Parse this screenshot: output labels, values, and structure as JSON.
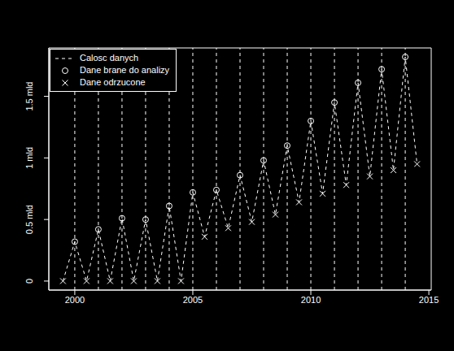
{
  "chart_data": {
    "type": "line",
    "legend": "upper left",
    "xlim": [
      1998.9,
      2015.1
    ],
    "xticks": [
      2000,
      2005,
      2010,
      2015
    ],
    "ylim": [
      -0.073,
      1.893
    ],
    "yticks": [
      0,
      {
        "value": 0.5,
        "label": "0.5 mld"
      },
      {
        "value": 1,
        "label": "1 mld"
      },
      {
        "value": 1.5,
        "label": "1.5 mld"
      }
    ],
    "vlines": [
      2000,
      2001,
      2002,
      2003,
      2004,
      2005,
      2006,
      2007,
      2008,
      2009,
      2010,
      2011,
      2012,
      2013,
      2014
    ],
    "series": [
      {
        "name": "Calosc danych",
        "type": "line",
        "line_style": "dashed",
        "color": "#ffffff",
        "x": [
          1999.5,
          2000,
          2000.5,
          2001,
          2001.5,
          2002,
          2002.5,
          2003,
          2003.5,
          2004,
          2004.5,
          2005,
          2005.5,
          2006,
          2006.5,
          2007,
          2007.5,
          2008,
          2008.5,
          2009,
          2009.5,
          2010,
          2010.5,
          2011,
          2011.5,
          2012,
          2012.5,
          2013,
          2013.5,
          2014,
          2014.5
        ],
        "values": [
          0,
          0.32,
          0,
          0.42,
          0,
          0.51,
          0,
          0.5,
          0,
          0.61,
          0,
          0.72,
          0.36,
          0.74,
          0.43,
          0.86,
          0.48,
          0.98,
          0.54,
          1.1,
          0.64,
          1.3,
          0.71,
          1.45,
          0.78,
          1.61,
          0.85,
          1.72,
          0.9,
          1.82,
          0.95
        ]
      },
      {
        "name": "Dane brane do analizy",
        "type": "scatter",
        "marker": "circle",
        "color": "#ffffff",
        "x": [
          2000,
          2001,
          2002,
          2003,
          2004,
          2005,
          2006,
          2007,
          2008,
          2009,
          2010,
          2011,
          2012,
          2013,
          2014
        ],
        "values": [
          0.32,
          0.42,
          0.51,
          0.5,
          0.61,
          0.72,
          0.74,
          0.86,
          0.98,
          1.1,
          1.3,
          1.45,
          1.61,
          1.72,
          1.82
        ]
      },
      {
        "name": "Dane odrzucone",
        "type": "scatter",
        "marker": "x",
        "color": "#ffffff",
        "x": [
          1999.5,
          2000.5,
          2001.5,
          2002.5,
          2003.5,
          2004.5,
          2005.5,
          2006.5,
          2007.5,
          2008.5,
          2009.5,
          2010.5,
          2011.5,
          2012.5,
          2013.5,
          2014.5
        ],
        "values": [
          0,
          0,
          0,
          0,
          0,
          0,
          0.36,
          0.43,
          0.48,
          0.54,
          0.64,
          0.71,
          0.78,
          0.85,
          0.9,
          0.95
        ]
      }
    ]
  }
}
